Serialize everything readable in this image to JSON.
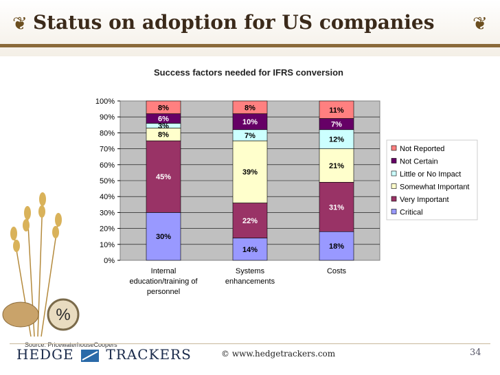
{
  "slide": {
    "title": "Status on adoption for US companies",
    "source": "Source: PricewaterhouseCoopers",
    "logo_left": "HEDGE",
    "logo_right": "TRACKERS",
    "copyright": "© www.hedgetrackers.com",
    "page_number": "34"
  },
  "chart_data": {
    "type": "bar",
    "stacked": true,
    "title": "Success factors needed for IFRS conversion",
    "categories": [
      "Internal education/training of personnel",
      "Systems enhancements",
      "Costs"
    ],
    "category_lines": [
      [
        "Internal",
        "education/training of",
        "personnel"
      ],
      [
        "Systems",
        "enhancements"
      ],
      [
        "Costs"
      ]
    ],
    "ylim": [
      0,
      100
    ],
    "yticks": [
      "0%",
      "10%",
      "20%",
      "30%",
      "40%",
      "50%",
      "60%",
      "70%",
      "80%",
      "90%",
      "100%"
    ],
    "legend_position": "right",
    "series": [
      {
        "name": "Critical",
        "color": "#9999ff",
        "values": [
          30,
          14,
          18
        ],
        "labels": [
          "30%",
          "14%",
          "18%"
        ]
      },
      {
        "name": "Very Important",
        "color": "#993366",
        "values": [
          45,
          22,
          31
        ],
        "labels": [
          "45%",
          "22%",
          "31%"
        ]
      },
      {
        "name": "Somewhat Important",
        "color": "#ffffcc",
        "values": [
          8,
          39,
          21
        ],
        "labels": [
          "8%",
          "39%",
          "21%"
        ]
      },
      {
        "name": "Little or No Impact",
        "color": "#ccffff",
        "values": [
          3,
          7,
          12
        ],
        "labels": [
          "3%",
          "7%",
          "12%"
        ]
      },
      {
        "name": "Not Certain",
        "color": "#660066",
        "values": [
          6,
          10,
          7
        ],
        "labels": [
          "6%",
          "10%",
          "7%"
        ]
      },
      {
        "name": "Not Reported",
        "color": "#ff8080",
        "values": [
          8,
          8,
          11
        ],
        "labels": [
          "8%",
          "8%",
          "11%"
        ]
      }
    ]
  }
}
